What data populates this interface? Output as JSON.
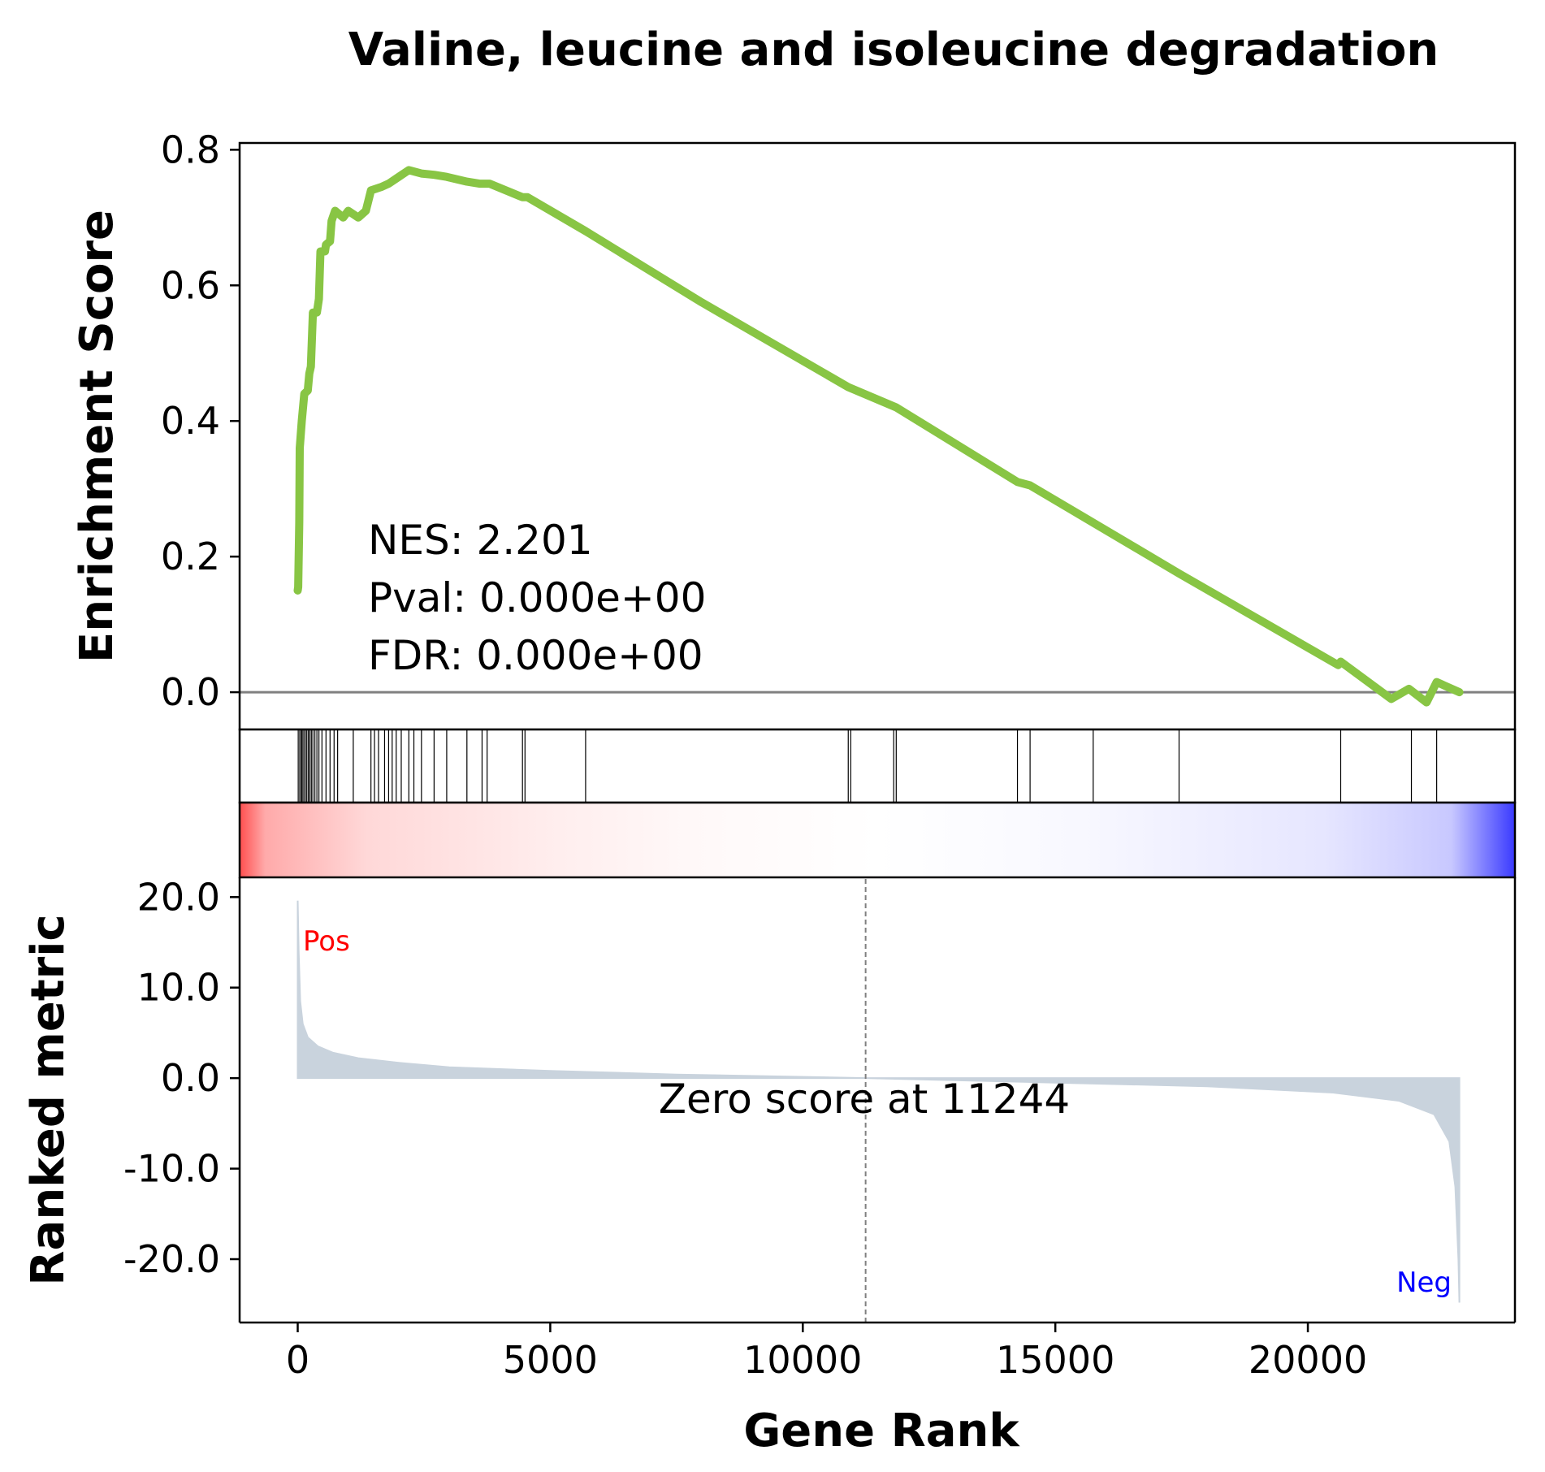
{
  "chart_data": {
    "type": "line",
    "title": "Valine, leucine and isoleucine degradation",
    "xlabel": "Gene Rank",
    "es_ylabel": "Enrichment Score",
    "rank_ylabel": "Ranked metric",
    "xlim": [
      -1150,
      24100
    ],
    "es_ylim": [
      -0.055,
      0.81
    ],
    "rank_ylim": [
      -27,
      22
    ],
    "x_ticks": [
      0,
      5000,
      10000,
      15000,
      20000
    ],
    "x_tick_labels": [
      "0",
      "5000",
      "10000",
      "15000",
      "20000"
    ],
    "es_ticks": [
      0.0,
      0.2,
      0.4,
      0.6,
      0.8
    ],
    "es_tick_labels": [
      "0.0",
      "0.2",
      "0.4",
      "0.6",
      "0.8"
    ],
    "rank_ticks": [
      20,
      10,
      0,
      -10,
      -20
    ],
    "rank_tick_labels": [
      "20.0",
      "10.0",
      "0.0",
      "-10.0",
      "-20.0"
    ],
    "stats": {
      "nes": "NES: 2.201",
      "pval": "Pval: 0.000e+00",
      "fdr": "FDR: 0.000e+00"
    },
    "zero_score_label": "Zero score at 11244",
    "zero_score_rank": 11244,
    "pos_label": "Pos",
    "neg_label": "Neg",
    "es_color": "#88c544",
    "ranked_fill_color": "#c9d3dd",
    "hit_ranks": [
      10,
      40,
      70,
      90,
      120,
      150,
      180,
      210,
      240,
      270,
      300,
      340,
      380,
      420,
      480,
      560,
      640,
      720,
      790,
      1100,
      1450,
      1520,
      1600,
      1720,
      1800,
      1870,
      1950,
      2050,
      2200,
      2300,
      2450,
      2700,
      2950,
      3350,
      3650,
      3750,
      4450,
      4500,
      5700,
      10900,
      10950,
      11800,
      11850,
      14250,
      14500,
      15750,
      17450,
      20650,
      22050,
      22550
    ],
    "es_points": [
      [
        0,
        0.15
      ],
      [
        10,
        0.155
      ],
      [
        30,
        0.25
      ],
      [
        40,
        0.36
      ],
      [
        80,
        0.4
      ],
      [
        130,
        0.44
      ],
      [
        200,
        0.445
      ],
      [
        230,
        0.47
      ],
      [
        260,
        0.48
      ],
      [
        300,
        0.56
      ],
      [
        380,
        0.56
      ],
      [
        420,
        0.58
      ],
      [
        450,
        0.65
      ],
      [
        540,
        0.65
      ],
      [
        560,
        0.66
      ],
      [
        640,
        0.665
      ],
      [
        670,
        0.695
      ],
      [
        740,
        0.71
      ],
      [
        900,
        0.7
      ],
      [
        1000,
        0.71
      ],
      [
        1200,
        0.7
      ],
      [
        1350,
        0.71
      ],
      [
        1450,
        0.74
      ],
      [
        1650,
        0.745
      ],
      [
        1800,
        0.75
      ],
      [
        2000,
        0.76
      ],
      [
        2200,
        0.77
      ],
      [
        2450,
        0.765
      ],
      [
        2700,
        0.763
      ],
      [
        2950,
        0.76
      ],
      [
        3350,
        0.753
      ],
      [
        3600,
        0.75
      ],
      [
        3800,
        0.75
      ],
      [
        4450,
        0.73
      ],
      [
        4550,
        0.73
      ],
      [
        5700,
        0.68
      ],
      [
        8000,
        0.575
      ],
      [
        10900,
        0.45
      ],
      [
        11850,
        0.42
      ],
      [
        14250,
        0.31
      ],
      [
        14500,
        0.305
      ],
      [
        15750,
        0.25
      ],
      [
        17450,
        0.175
      ],
      [
        20600,
        0.04
      ],
      [
        20650,
        0.045
      ],
      [
        21650,
        -0.01
      ],
      [
        22000,
        0.005
      ],
      [
        22350,
        -0.015
      ],
      [
        22550,
        0.015
      ],
      [
        23000,
        0.0
      ]
    ],
    "ranked_points": [
      [
        0,
        19.6
      ],
      [
        20,
        14
      ],
      [
        50,
        8.5
      ],
      [
        100,
        6.0
      ],
      [
        200,
        4.5
      ],
      [
        400,
        3.5
      ],
      [
        700,
        2.8
      ],
      [
        1200,
        2.2
      ],
      [
        2000,
        1.7
      ],
      [
        3000,
        1.2
      ],
      [
        5000,
        0.8
      ],
      [
        7500,
        0.4
      ],
      [
        11244,
        0.0
      ],
      [
        15000,
        -0.5
      ],
      [
        18000,
        -0.9
      ],
      [
        20500,
        -1.6
      ],
      [
        21800,
        -2.5
      ],
      [
        22500,
        -4.0
      ],
      [
        22800,
        -7.0
      ],
      [
        22920,
        -12.0
      ],
      [
        22980,
        -20.0
      ],
      [
        23000,
        -24.8
      ]
    ]
  }
}
